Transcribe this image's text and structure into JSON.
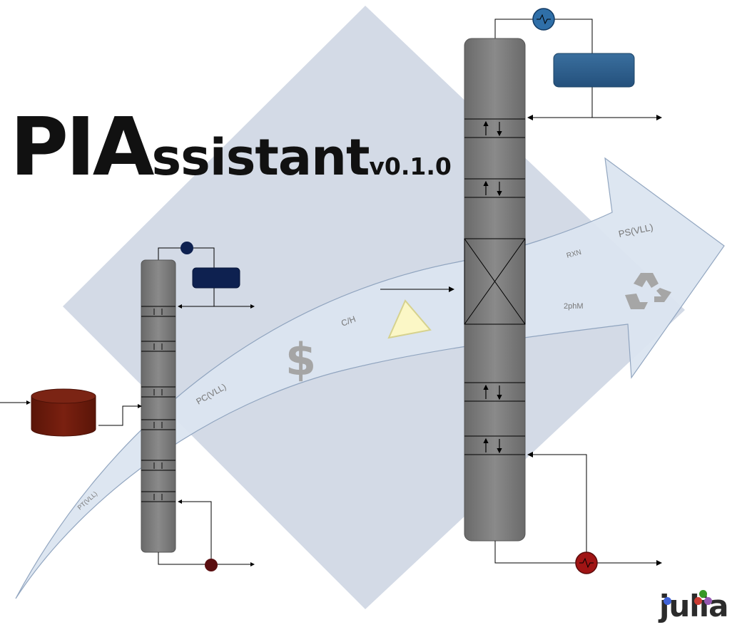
{
  "title": {
    "big": "PIA",
    "rest": "ssistant",
    "version": "v0.1.0"
  },
  "arrow_labels": {
    "pt": "PT(VLL)",
    "pc": "PC(VLL)",
    "ch": "C/H",
    "rxn": "RXN",
    "twophm": "2phM",
    "ps": "PS(VLL)"
  },
  "icons": {
    "dollar": "$",
    "recycle": "recycle-icon",
    "warning": "triangle-icon"
  },
  "logo": {
    "text": "julia",
    "dots": [
      "#4063d8",
      "#389826",
      "#9558b2",
      "#cb3c33"
    ]
  },
  "colors": {
    "diamond": "#d3dae6",
    "arrow": "#dce5f1",
    "column": "#7a7a7a",
    "condenser_small": "#0e2150",
    "condenser_large": "#2e5f8e",
    "reboiler": "#5a0e10",
    "tank": "#6e1a0c"
  }
}
